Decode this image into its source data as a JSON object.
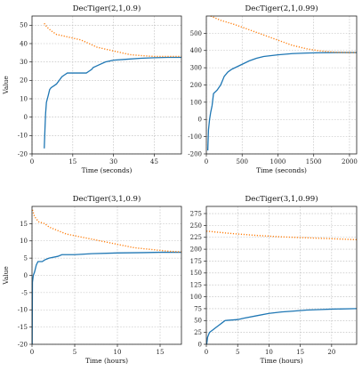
{
  "chart_data": [
    {
      "type": "line",
      "title": "DecTiger(2,1,0.9)",
      "xlabel": "Time (seconds)",
      "ylabel": "Value",
      "xlim": [
        0,
        55
      ],
      "ylim": [
        -20,
        55
      ],
      "xticks": [
        0,
        15,
        30,
        45
      ],
      "yticks": [
        -20,
        -10,
        0,
        10,
        20,
        30,
        40,
        50
      ],
      "grid": true,
      "series": [
        {
          "color": "#1f77b4",
          "style": "solid",
          "points": [
            [
              4.5,
              -17
            ],
            [
              4.8,
              -5
            ],
            [
              5,
              2
            ],
            [
              5.3,
              8
            ],
            [
              6,
              12
            ],
            [
              6.5,
              15
            ],
            [
              7,
              16
            ],
            [
              8,
              17
            ],
            [
              9,
              18
            ],
            [
              10,
              20
            ],
            [
              11,
              22
            ],
            [
              12,
              23
            ],
            [
              13,
              24
            ],
            [
              20,
              24
            ],
            [
              21,
              25
            ],
            [
              22,
              26
            ],
            [
              22.5,
              27
            ],
            [
              24,
              28
            ],
            [
              27,
              30
            ],
            [
              30,
              31
            ],
            [
              35,
              31.5
            ],
            [
              40,
              32
            ],
            [
              45,
              32.3
            ],
            [
              50,
              32.5
            ],
            [
              55,
              32.5
            ]
          ]
        },
        {
          "color": "#ff7f0e",
          "style": "dotted",
          "points": [
            [
              4.5,
              51
            ],
            [
              5.5,
              49
            ],
            [
              7,
              47
            ],
            [
              9,
              45
            ],
            [
              12,
              44
            ],
            [
              15,
              43
            ],
            [
              18,
              42
            ],
            [
              21,
              40
            ],
            [
              24,
              38
            ],
            [
              27,
              37
            ],
            [
              30,
              36
            ],
            [
              33,
              35
            ],
            [
              36,
              34
            ],
            [
              40,
              33.5
            ],
            [
              45,
              33
            ],
            [
              50,
              33
            ],
            [
              55,
              33
            ]
          ]
        }
      ]
    },
    {
      "type": "line",
      "title": "DecTiger(2,1,0.99)",
      "xlabel": "Time (seconds)",
      "ylabel": "",
      "xlim": [
        0,
        2100
      ],
      "ylim": [
        -200,
        600
      ],
      "xticks": [
        0,
        500,
        1000,
        1500,
        2000
      ],
      "yticks": [
        -200,
        -100,
        0,
        100,
        200,
        300,
        400,
        500
      ],
      "grid": true,
      "series": [
        {
          "color": "#1f77b4",
          "style": "solid",
          "points": [
            [
              20,
              -180
            ],
            [
              30,
              -60
            ],
            [
              45,
              0
            ],
            [
              60,
              40
            ],
            [
              80,
              80
            ],
            [
              100,
              150
            ],
            [
              150,
              170
            ],
            [
              200,
              200
            ],
            [
              250,
              250
            ],
            [
              300,
              275
            ],
            [
              350,
              290
            ],
            [
              400,
              300
            ],
            [
              500,
              320
            ],
            [
              600,
              340
            ],
            [
              700,
              355
            ],
            [
              800,
              365
            ],
            [
              1000,
              375
            ],
            [
              1200,
              382
            ],
            [
              1400,
              385
            ],
            [
              1600,
              387
            ],
            [
              1800,
              388
            ],
            [
              2100,
              388
            ]
          ]
        },
        {
          "color": "#ff7f0e",
          "style": "dotted",
          "points": [
            [
              60,
              600
            ],
            [
              200,
              575
            ],
            [
              400,
              550
            ],
            [
              600,
              520
            ],
            [
              800,
              490
            ],
            [
              1000,
              460
            ],
            [
              1200,
              430
            ],
            [
              1400,
              410
            ],
            [
              1600,
              397
            ],
            [
              1800,
              390
            ],
            [
              2000,
              388
            ],
            [
              2100,
              388
            ]
          ]
        }
      ]
    },
    {
      "type": "line",
      "title": "DecTiger(3,1,0.9)",
      "xlabel": "Time (hours)",
      "ylabel": "Value",
      "xlim": [
        0,
        17.5
      ],
      "ylim": [
        -20,
        20
      ],
      "xticks": [
        0,
        5,
        10,
        15
      ],
      "yticks": [
        -20,
        -15,
        -10,
        -5,
        0,
        5,
        10,
        15
      ],
      "grid": true,
      "series": [
        {
          "color": "#1f77b4",
          "style": "solid",
          "points": [
            [
              0.02,
              -20
            ],
            [
              0.05,
              -2
            ],
            [
              0.15,
              0
            ],
            [
              0.3,
              1
            ],
            [
              0.5,
              3
            ],
            [
              0.7,
              4
            ],
            [
              1.2,
              4
            ],
            [
              1.5,
              4.5
            ],
            [
              2,
              5
            ],
            [
              3,
              5.5
            ],
            [
              3.5,
              6
            ],
            [
              5,
              6
            ],
            [
              7,
              6.3
            ],
            [
              10,
              6.5
            ],
            [
              13,
              6.6
            ],
            [
              15,
              6.7
            ],
            [
              17.5,
              6.7
            ]
          ]
        },
        {
          "color": "#ff7f0e",
          "style": "dotted",
          "points": [
            [
              0.05,
              19
            ],
            [
              0.3,
              17
            ],
            [
              0.8,
              15.5
            ],
            [
              1.5,
              15
            ],
            [
              2,
              14
            ],
            [
              3,
              13
            ],
            [
              4,
              12
            ],
            [
              6,
              11
            ],
            [
              8,
              10
            ],
            [
              10,
              9
            ],
            [
              12,
              8
            ],
            [
              14,
              7.5
            ],
            [
              16,
              7
            ],
            [
              17.5,
              6.8
            ]
          ]
        }
      ]
    },
    {
      "type": "line",
      "title": "DecTiger(3,1,0.99)",
      "xlabel": "Time (hours)",
      "ylabel": "",
      "xlim": [
        0,
        24
      ],
      "ylim": [
        0,
        290
      ],
      "xticks": [
        0,
        5,
        10,
        15,
        20
      ],
      "yticks": [
        0,
        25,
        50,
        75,
        100,
        125,
        150,
        175,
        200,
        225,
        250,
        275
      ],
      "grid": true,
      "series": [
        {
          "color": "#1f77b4",
          "style": "solid",
          "points": [
            [
              0.05,
              0
            ],
            [
              0.2,
              15
            ],
            [
              0.5,
              25
            ],
            [
              1,
              30
            ],
            [
              1.5,
              35
            ],
            [
              2,
              40
            ],
            [
              2.5,
              45
            ],
            [
              3,
              50
            ],
            [
              5,
              52
            ],
            [
              6,
              55
            ],
            [
              8,
              60
            ],
            [
              10,
              65
            ],
            [
              12,
              68
            ],
            [
              14,
              70
            ],
            [
              16,
              72
            ],
            [
              18,
              73
            ],
            [
              20,
              74
            ],
            [
              24,
              75
            ]
          ]
        },
        {
          "color": "#ff7f0e",
          "style": "dotted",
          "points": [
            [
              0,
              238
            ],
            [
              4,
              233
            ],
            [
              8,
              229
            ],
            [
              12,
              226
            ],
            [
              16,
              224
            ],
            [
              20,
              222
            ],
            [
              24,
              220
            ]
          ]
        }
      ]
    }
  ]
}
